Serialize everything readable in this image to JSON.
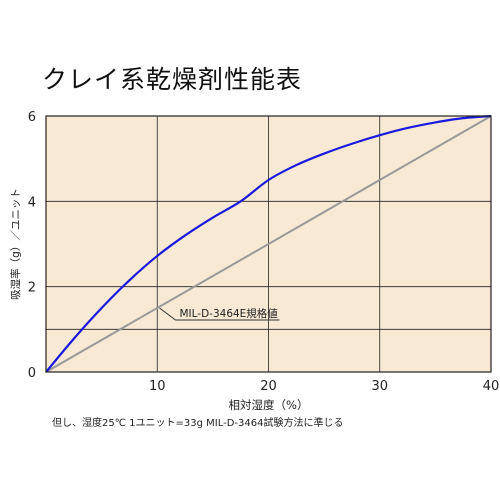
{
  "chart_data": {
    "type": "line",
    "title": "クレイ系乾燥剤性能表",
    "xlabel": "相対湿度（%）",
    "ylabel": "吸湿率（g）／ユニット",
    "note": "但し、湿度25℃ 1ユニット=33g  MIL-D-3464試験方法に準じる",
    "xlim": [
      0,
      40
    ],
    "ylim": [
      0,
      6
    ],
    "xticks": [
      "10",
      "20",
      "30",
      "40"
    ],
    "yticks": [
      "0",
      "2",
      "4",
      "6"
    ],
    "grid": true,
    "series": [
      {
        "name": "",
        "color": "#1a1adf",
        "x": [
          0,
          2.5,
          5,
          7.5,
          10,
          12.5,
          15,
          17.5,
          20,
          22.5,
          25,
          27.5,
          30,
          32.5,
          35,
          37.5,
          40
        ],
        "y": [
          0,
          0.78,
          1.5,
          2.15,
          2.72,
          3.2,
          3.62,
          4.0,
          4.5,
          4.85,
          5.12,
          5.35,
          5.55,
          5.72,
          5.85,
          5.95,
          6.0
        ]
      },
      {
        "name": "MIL-D-3464E規格値",
        "color": "#999999",
        "x": [
          0,
          40
        ],
        "y": [
          0,
          6
        ]
      }
    ],
    "annotation": {
      "text": "MIL-D-3464E規格値",
      "x": 10.2,
      "y": 1.5
    }
  }
}
